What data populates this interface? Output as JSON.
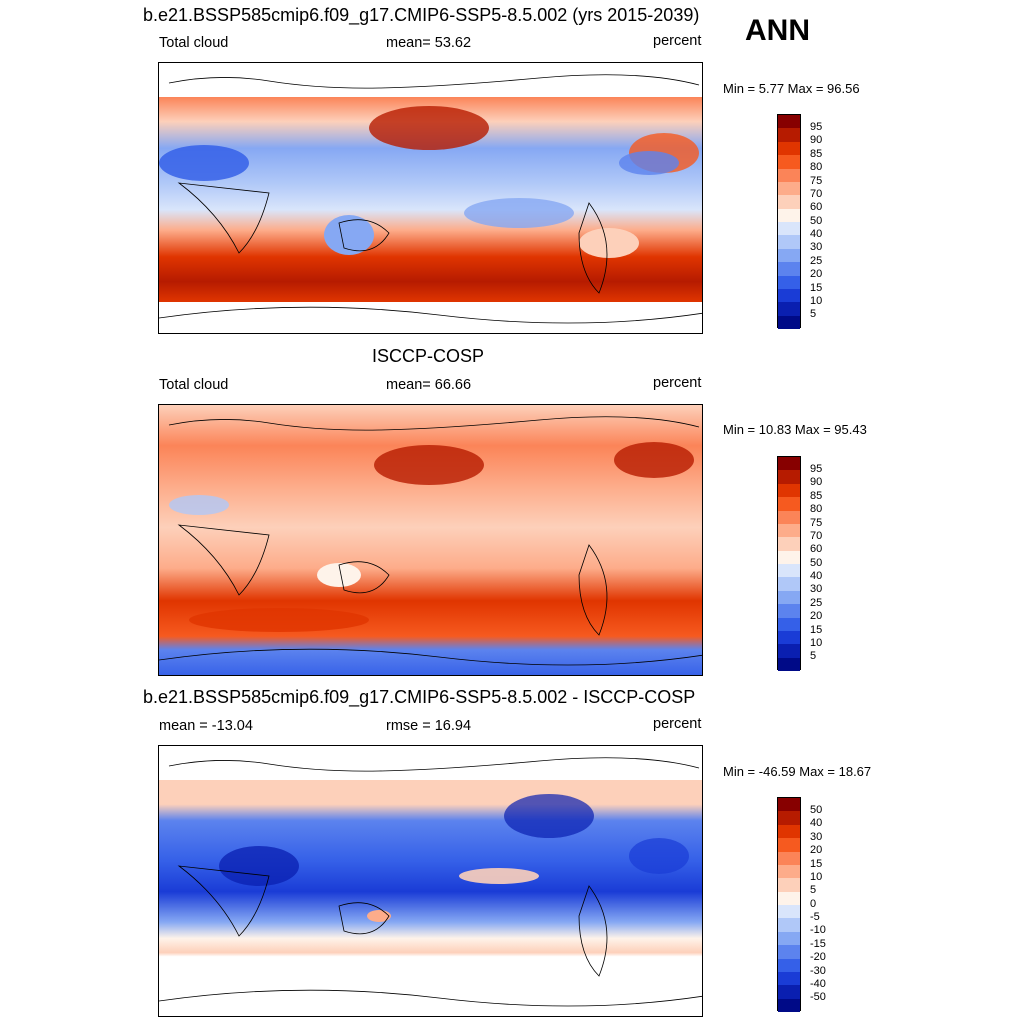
{
  "season": "ANN",
  "panels": [
    {
      "title": "b.e21.BSSP585cmip6.f09_g17.CMIP6-SSP5-8.5.002 (yrs 2015-2039)",
      "left_label": "Total cloud",
      "center_label": "mean=  53.62",
      "right_label": "percent",
      "minmax": "Min =   5.77 Max =  96.56",
      "levels": [
        "95",
        "90",
        "85",
        "80",
        "75",
        "70",
        "60",
        "50",
        "40",
        "30",
        "25",
        "20",
        "15",
        "10",
        "5"
      ]
    },
    {
      "title": "ISCCP-COSP",
      "left_label": "Total cloud",
      "center_label": "mean=  66.66",
      "right_label": "percent",
      "minmax": "Min =  10.83 Max =  95.43",
      "levels": [
        "95",
        "90",
        "85",
        "80",
        "75",
        "70",
        "60",
        "50",
        "40",
        "30",
        "25",
        "20",
        "15",
        "10",
        "5"
      ]
    },
    {
      "title": "b.e21.BSSP585cmip6.f09_g17.CMIP6-SSP5-8.5.002 - ISCCP-COSP",
      "left_label": "mean = -13.04",
      "center_label": "rmse =  16.94",
      "right_label": "percent",
      "minmax": "Min = -46.59 Max =  18.67",
      "levels": [
        "50",
        "40",
        "30",
        "20",
        "15",
        "10",
        "5",
        "0",
        "-5",
        "-10",
        "-15",
        "-20",
        "-30",
        "-40",
        "-50"
      ]
    }
  ],
  "colors": {
    "palette": [
      "#870000",
      "#b61b00",
      "#e03500",
      "#f65a1f",
      "#fb8458",
      "#fdac8a",
      "#fdd0ba",
      "#fef3ea",
      "#d9e5fb",
      "#b0c8f8",
      "#86a8f3",
      "#5c83ee",
      "#3560e8",
      "#1a3cd6",
      "#0a1fb0",
      "#000a87"
    ]
  }
}
